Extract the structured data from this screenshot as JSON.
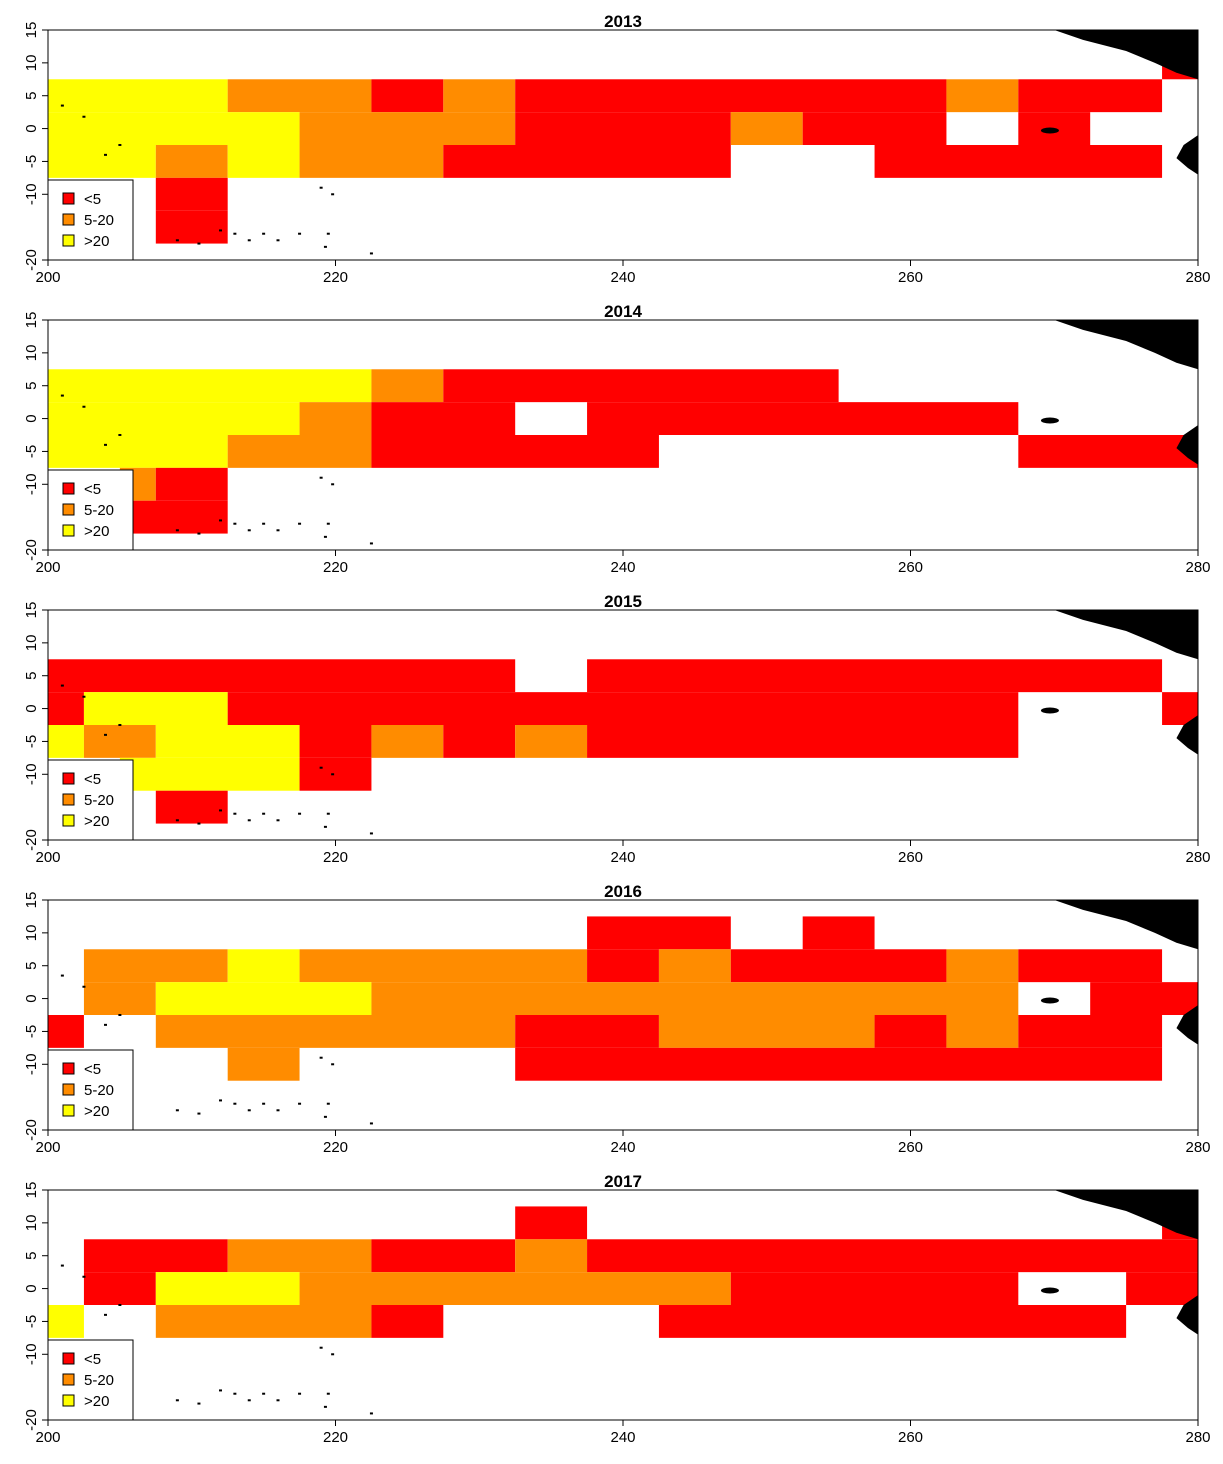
{
  "colors": {
    "lt5": "#FF0000",
    "5to20": "#FF8C00",
    "gt20": "#FFFF00",
    "land": "#000000"
  },
  "legend": [
    {
      "key": "lt5",
      "label": "<5"
    },
    {
      "key": "5to20",
      "label": "5-20"
    },
    {
      "key": "gt20",
      "label": ">20"
    }
  ],
  "chart_data": {
    "type": "heatmap",
    "x_ticks": [
      200,
      220,
      240,
      260,
      280
    ],
    "y_ticks": [
      -20,
      -10,
      -5,
      0,
      5,
      10,
      15
    ],
    "xlim": [
      200,
      280
    ],
    "ylim": [
      -20,
      15
    ],
    "cell_size": 5,
    "panels": [
      {
        "title": "2013",
        "cells": [
          {
            "lat": 5,
            "lon": [
              200,
              212.5
            ],
            "c": "gt20"
          },
          {
            "lat": 5,
            "lon": [
              212.5,
              222.5
            ],
            "c": "5to20"
          },
          {
            "lat": 5,
            "lon": [
              222.5,
              227.5
            ],
            "c": "lt5"
          },
          {
            "lat": 5,
            "lon": [
              227.5,
              232.5
            ],
            "c": "5to20"
          },
          {
            "lat": 5,
            "lon": [
              232.5,
              262.5
            ],
            "c": "lt5"
          },
          {
            "lat": 5,
            "lon": [
              262.5,
              267.5
            ],
            "c": "5to20"
          },
          {
            "lat": 5,
            "lon": [
              267.5,
              277.5
            ],
            "c": "lt5"
          },
          {
            "lat": 0,
            "lon": [
              200,
              217.5
            ],
            "c": "gt20"
          },
          {
            "lat": 0,
            "lon": [
              217.5,
              232.5
            ],
            "c": "5to20"
          },
          {
            "lat": 0,
            "lon": [
              232.5,
              247.5
            ],
            "c": "lt5"
          },
          {
            "lat": 0,
            "lon": [
              247.5,
              252.5
            ],
            "c": "5to20"
          },
          {
            "lat": 0,
            "lon": [
              252.5,
              262.5
            ],
            "c": "lt5"
          },
          {
            "lat": 0,
            "lon": [
              267.5,
              272.5
            ],
            "c": "lt5"
          },
          {
            "lat": -5,
            "lon": [
              200,
              207.5
            ],
            "c": "gt20"
          },
          {
            "lat": -5,
            "lon": [
              207.5,
              212.5
            ],
            "c": "5to20"
          },
          {
            "lat": -5,
            "lon": [
              212.5,
              217.5
            ],
            "c": "gt20"
          },
          {
            "lat": -5,
            "lon": [
              217.5,
              227.5
            ],
            "c": "5to20"
          },
          {
            "lat": -5,
            "lon": [
              227.5,
              247.5
            ],
            "c": "lt5"
          },
          {
            "lat": -5,
            "lon": [
              257.5,
              277.5
            ],
            "c": "lt5"
          },
          {
            "lat": -10,
            "lon": [
              207.5,
              212.5
            ],
            "c": "lt5"
          },
          {
            "lat": -15,
            "lon": [
              207.5,
              212.5
            ],
            "c": "lt5"
          },
          {
            "lat": 10,
            "lon": [
              277.5,
              280
            ],
            "c": "lt5"
          }
        ]
      },
      {
        "title": "2014",
        "cells": [
          {
            "lat": 5,
            "lon": [
              200,
              222.5
            ],
            "c": "gt20"
          },
          {
            "lat": 5,
            "lon": [
              222.5,
              227.5
            ],
            "c": "5to20"
          },
          {
            "lat": 5,
            "lon": [
              227.5,
              255
            ],
            "c": "lt5"
          },
          {
            "lat": 0,
            "lon": [
              200,
              217.5
            ],
            "c": "gt20"
          },
          {
            "lat": 0,
            "lon": [
              217.5,
              222.5
            ],
            "c": "5to20"
          },
          {
            "lat": 0,
            "lon": [
              222.5,
              232.5
            ],
            "c": "lt5"
          },
          {
            "lat": 0,
            "lon": [
              237.5,
              267.5
            ],
            "c": "lt5"
          },
          {
            "lat": -5,
            "lon": [
              200,
              212.5
            ],
            "c": "gt20"
          },
          {
            "lat": -5,
            "lon": [
              212.5,
              222.5
            ],
            "c": "5to20"
          },
          {
            "lat": -5,
            "lon": [
              222.5,
              242.5
            ],
            "c": "lt5"
          },
          {
            "lat": -5,
            "lon": [
              267.5,
              280
            ],
            "c": "lt5"
          },
          {
            "lat": -10,
            "lon": [
              205,
              207.5
            ],
            "c": "5to20"
          },
          {
            "lat": -10,
            "lon": [
              207.5,
              212.5
            ],
            "c": "lt5"
          },
          {
            "lat": -15,
            "lon": [
              205,
              212.5
            ],
            "c": "lt5"
          }
        ]
      },
      {
        "title": "2015",
        "cells": [
          {
            "lat": 5,
            "lon": [
              200,
              232.5
            ],
            "c": "lt5"
          },
          {
            "lat": 5,
            "lon": [
              237.5,
              277.5
            ],
            "c": "lt5"
          },
          {
            "lat": 0,
            "lon": [
              200,
              202.5
            ],
            "c": "lt5"
          },
          {
            "lat": 0,
            "lon": [
              202.5,
              212.5
            ],
            "c": "gt20"
          },
          {
            "lat": 0,
            "lon": [
              212.5,
              267.5
            ],
            "c": "lt5"
          },
          {
            "lat": 0,
            "lon": [
              277.5,
              280
            ],
            "c": "lt5"
          },
          {
            "lat": -5,
            "lon": [
              200,
              202.5
            ],
            "c": "gt20"
          },
          {
            "lat": -5,
            "lon": [
              202.5,
              207.5
            ],
            "c": "5to20"
          },
          {
            "lat": -5,
            "lon": [
              207.5,
              217.5
            ],
            "c": "gt20"
          },
          {
            "lat": -5,
            "lon": [
              217.5,
              222.5
            ],
            "c": "lt5"
          },
          {
            "lat": -5,
            "lon": [
              222.5,
              227.5
            ],
            "c": "5to20"
          },
          {
            "lat": -5,
            "lon": [
              227.5,
              232.5
            ],
            "c": "lt5"
          },
          {
            "lat": -5,
            "lon": [
              232.5,
              237.5
            ],
            "c": "5to20"
          },
          {
            "lat": -5,
            "lon": [
              237.5,
              267.5
            ],
            "c": "lt5"
          },
          {
            "lat": -10,
            "lon": [
              205,
              217.5
            ],
            "c": "gt20"
          },
          {
            "lat": -10,
            "lon": [
              217.5,
              222.5
            ],
            "c": "lt5"
          },
          {
            "lat": -15,
            "lon": [
              207.5,
              212.5
            ],
            "c": "lt5"
          }
        ]
      },
      {
        "title": "2016",
        "cells": [
          {
            "lat": 10,
            "lon": [
              237.5,
              247.5
            ],
            "c": "lt5"
          },
          {
            "lat": 10,
            "lon": [
              252.5,
              257.5
            ],
            "c": "lt5"
          },
          {
            "lat": 5,
            "lon": [
              202.5,
              212.5
            ],
            "c": "5to20"
          },
          {
            "lat": 5,
            "lon": [
              212.5,
              217.5
            ],
            "c": "gt20"
          },
          {
            "lat": 5,
            "lon": [
              217.5,
              237.5
            ],
            "c": "5to20"
          },
          {
            "lat": 5,
            "lon": [
              237.5,
              242.5
            ],
            "c": "lt5"
          },
          {
            "lat": 5,
            "lon": [
              242.5,
              247.5
            ],
            "c": "5to20"
          },
          {
            "lat": 5,
            "lon": [
              247.5,
              262.5
            ],
            "c": "lt5"
          },
          {
            "lat": 5,
            "lon": [
              262.5,
              267.5
            ],
            "c": "5to20"
          },
          {
            "lat": 5,
            "lon": [
              267.5,
              277.5
            ],
            "c": "lt5"
          },
          {
            "lat": 0,
            "lon": [
              202.5,
              207.5
            ],
            "c": "5to20"
          },
          {
            "lat": 0,
            "lon": [
              207.5,
              222.5
            ],
            "c": "gt20"
          },
          {
            "lat": 0,
            "lon": [
              222.5,
              267.5
            ],
            "c": "5to20"
          },
          {
            "lat": 0,
            "lon": [
              272.5,
              280
            ],
            "c": "lt5"
          },
          {
            "lat": -5,
            "lon": [
              200,
              202.5
            ],
            "c": "lt5"
          },
          {
            "lat": -5,
            "lon": [
              207.5,
              232.5
            ],
            "c": "5to20"
          },
          {
            "lat": -5,
            "lon": [
              232.5,
              242.5
            ],
            "c": "lt5"
          },
          {
            "lat": -5,
            "lon": [
              242.5,
              257.5
            ],
            "c": "5to20"
          },
          {
            "lat": -5,
            "lon": [
              257.5,
              262.5
            ],
            "c": "lt5"
          },
          {
            "lat": -5,
            "lon": [
              262.5,
              267.5
            ],
            "c": "5to20"
          },
          {
            "lat": -5,
            "lon": [
              267.5,
              277.5
            ],
            "c": "lt5"
          },
          {
            "lat": -10,
            "lon": [
              212.5,
              217.5
            ],
            "c": "5to20"
          },
          {
            "lat": -10,
            "lon": [
              232.5,
              277.5
            ],
            "c": "lt5"
          }
        ]
      },
      {
        "title": "2017",
        "cells": [
          {
            "lat": 10,
            "lon": [
              232.5,
              237.5
            ],
            "c": "lt5"
          },
          {
            "lat": 10,
            "lon": [
              277.5,
              280
            ],
            "c": "lt5"
          },
          {
            "lat": 5,
            "lon": [
              202.5,
              212.5
            ],
            "c": "lt5"
          },
          {
            "lat": 5,
            "lon": [
              212.5,
              222.5
            ],
            "c": "5to20"
          },
          {
            "lat": 5,
            "lon": [
              222.5,
              232.5
            ],
            "c": "lt5"
          },
          {
            "lat": 5,
            "lon": [
              232.5,
              237.5
            ],
            "c": "5to20"
          },
          {
            "lat": 5,
            "lon": [
              237.5,
              280
            ],
            "c": "lt5"
          },
          {
            "lat": 0,
            "lon": [
              202.5,
              207.5
            ],
            "c": "lt5"
          },
          {
            "lat": 0,
            "lon": [
              207.5,
              217.5
            ],
            "c": "gt20"
          },
          {
            "lat": 0,
            "lon": [
              217.5,
              247.5
            ],
            "c": "5to20"
          },
          {
            "lat": 0,
            "lon": [
              247.5,
              267.5
            ],
            "c": "lt5"
          },
          {
            "lat": 0,
            "lon": [
              275,
              280
            ],
            "c": "lt5"
          },
          {
            "lat": -5,
            "lon": [
              200,
              202.5
            ],
            "c": "gt20"
          },
          {
            "lat": -5,
            "lon": [
              207.5,
              222.5
            ],
            "c": "5to20"
          },
          {
            "lat": -5,
            "lon": [
              222.5,
              227.5
            ],
            "c": "lt5"
          },
          {
            "lat": -5,
            "lon": [
              242.5,
              275
            ],
            "c": "lt5"
          }
        ]
      }
    ]
  }
}
